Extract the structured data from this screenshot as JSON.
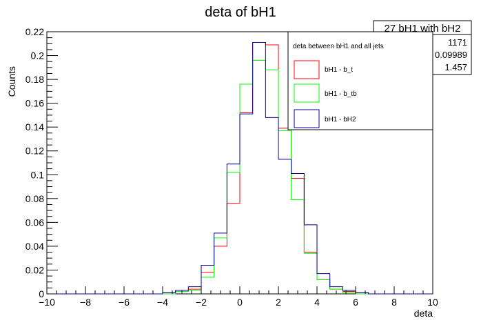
{
  "chart_data": {
    "type": "histogram",
    "title": "deta of bH1",
    "xlabel": "deta",
    "ylabel": "Counts",
    "xlim": [
      -10,
      10
    ],
    "ylim": [
      0,
      0.22
    ],
    "x_ticks": [
      "−10",
      "−8",
      "−6",
      "−4",
      "−2",
      "0",
      "2",
      "4",
      "6",
      "8",
      "10"
    ],
    "y_ticks": [
      "0",
      "0.02",
      "0.04",
      "0.06",
      "0.08",
      "0.1",
      "0.12",
      "0.14",
      "0.16",
      "0.18",
      "0.2",
      "0.22"
    ],
    "bin_width": 0.6667,
    "grid": false,
    "stats_box": {
      "title": "27 bH1 with bH2",
      "values": [
        "1171",
        "0.09989",
        "1.457"
      ]
    },
    "legend": {
      "header": "deta between bH1 and all jets",
      "placement": "top-right"
    },
    "series": [
      {
        "name": "bH1 - b_t",
        "color": "#ff0000",
        "values": [
          0,
          0,
          0,
          0,
          0,
          0,
          0,
          0,
          0,
          0.001,
          0.002,
          0.004,
          0.018,
          0.04,
          0.076,
          0.152,
          0.211,
          0.209,
          0.139,
          0.097,
          0.035,
          0.012,
          0.004,
          0.002,
          0.001,
          0,
          0,
          0,
          0,
          0
        ]
      },
      {
        "name": "bH1 - b_tb",
        "color": "#00ff00",
        "values": [
          0,
          0,
          0,
          0,
          0,
          0,
          0,
          0,
          0,
          0,
          0.002,
          0.003,
          0.014,
          0.047,
          0.102,
          0.176,
          0.196,
          0.188,
          0.137,
          0.079,
          0.034,
          0.012,
          0.004,
          0.001,
          0,
          0,
          0,
          0,
          0,
          0
        ]
      },
      {
        "name": "bH1 - bH2",
        "color": "#000099",
        "values": [
          0,
          0,
          0,
          0,
          0,
          0,
          0,
          0,
          0,
          0.001,
          0.003,
          0.006,
          0.024,
          0.051,
          0.109,
          0.151,
          0.211,
          0.148,
          0.113,
          0.101,
          0.058,
          0.017,
          0.006,
          0.003,
          0.001,
          0,
          0,
          0,
          0,
          0
        ]
      }
    ]
  }
}
